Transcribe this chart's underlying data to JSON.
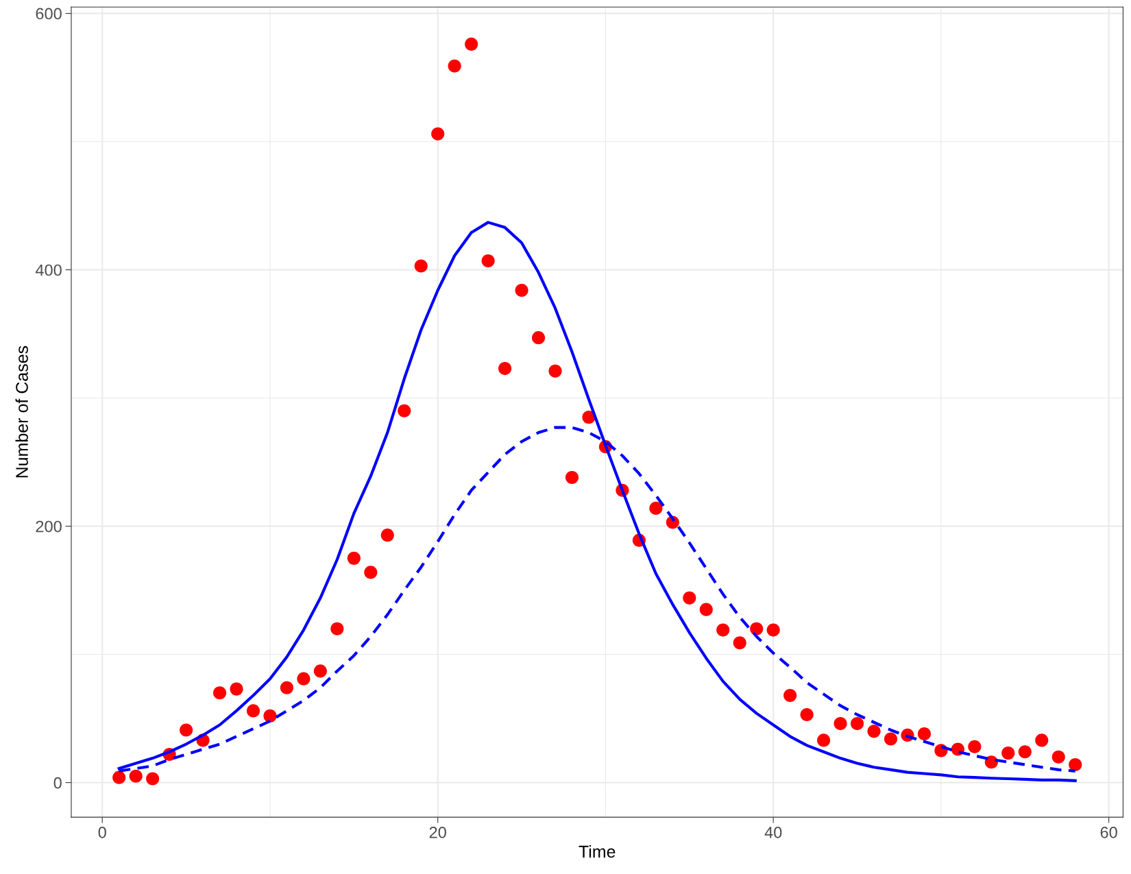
{
  "chart_data": {
    "type": "scatter",
    "xlabel": "Time",
    "ylabel": "Number of Cases",
    "xlim": [
      -1.85,
      60.85
    ],
    "ylim": [
      -27,
      605
    ],
    "xticks": [
      0,
      20,
      40,
      60
    ],
    "yticks": [
      0,
      200,
      400,
      600
    ],
    "grid": true,
    "legend": false,
    "series": [
      {
        "type": "line",
        "color": "#0000ff",
        "line_style": "solid",
        "marker": "none",
        "x": [
          1,
          2,
          3,
          4,
          5,
          6,
          7,
          8,
          9,
          10,
          11,
          12,
          13,
          14,
          15,
          16,
          17,
          18,
          19,
          20,
          21,
          22,
          23,
          24,
          25,
          26,
          27,
          28,
          29,
          30,
          31,
          32,
          33,
          34,
          35,
          36,
          37,
          38,
          39,
          40,
          41,
          42,
          43,
          44,
          45,
          46,
          47,
          48,
          49,
          50,
          51,
          52,
          53,
          54,
          55,
          56,
          57,
          58
        ],
        "values": [
          11,
          15,
          19,
          24,
          30,
          37,
          45,
          56,
          68,
          81,
          98,
          119,
          144,
          174,
          210,
          239,
          273,
          315,
          353,
          384,
          411,
          429,
          437,
          433,
          421,
          398,
          370,
          336,
          299,
          263,
          228,
          194,
          163,
          139,
          117,
          97,
          79,
          65,
          54,
          45,
          36,
          29,
          24,
          19,
          15,
          12,
          10,
          8,
          7,
          6,
          4.5,
          4,
          3.4,
          3,
          2.5,
          2,
          2,
          1.5
        ]
      },
      {
        "type": "line",
        "color": "#0000ff",
        "line_style": "dashed",
        "marker": "none",
        "x": [
          1,
          2,
          3,
          4,
          5,
          6,
          7,
          8,
          9,
          10,
          11,
          12,
          13,
          14,
          15,
          16,
          17,
          18,
          19,
          20,
          21,
          22,
          23,
          24,
          25,
          26,
          27,
          28,
          29,
          30,
          31,
          32,
          33,
          34,
          35,
          36,
          37,
          38,
          39,
          40,
          41,
          42,
          43,
          44,
          45,
          46,
          47,
          48,
          49,
          50,
          51,
          52,
          53,
          54,
          55,
          56,
          57,
          58
        ],
        "values": [
          9,
          11,
          13,
          18,
          22,
          26,
          30,
          36,
          42,
          48,
          56,
          64,
          74,
          87,
          99,
          114,
          131,
          150,
          168,
          188,
          209,
          228,
          242,
          256,
          266,
          273,
          277,
          277,
          273,
          266,
          255,
          241,
          224,
          206,
          187,
          167,
          147,
          129,
          114,
          101,
          90,
          78,
          69,
          60,
          53,
          47,
          41,
          36,
          32,
          28,
          24,
          21,
          18,
          16,
          14,
          12,
          10,
          9
        ]
      },
      {
        "color": "#ff0000",
        "marker": "circle",
        "x": [
          1,
          2,
          3,
          4,
          5,
          6,
          7,
          8,
          9,
          10,
          11,
          12,
          13,
          14,
          15,
          16,
          17,
          18,
          19,
          20,
          21,
          22,
          23,
          24,
          25,
          26,
          27,
          28,
          29,
          30,
          31,
          32,
          33,
          34,
          35,
          36,
          37,
          38,
          39,
          40,
          41,
          42,
          43,
          44,
          45,
          46,
          47,
          48,
          49,
          50,
          51,
          52,
          53,
          54,
          55,
          56,
          57,
          58
        ],
        "values": [
          4,
          5,
          3,
          22,
          41,
          33,
          70,
          73,
          56,
          52,
          74,
          81,
          87,
          120,
          175,
          164,
          193,
          290,
          403,
          506,
          559,
          576,
          407,
          323,
          384,
          347,
          321,
          238,
          285,
          262,
          228,
          189,
          214,
          203,
          144,
          135,
          119,
          109,
          120,
          119,
          68,
          53,
          33,
          46,
          46,
          40,
          34,
          37,
          38,
          25,
          26,
          28,
          16,
          23,
          24,
          33,
          20,
          14
        ]
      }
    ]
  }
}
